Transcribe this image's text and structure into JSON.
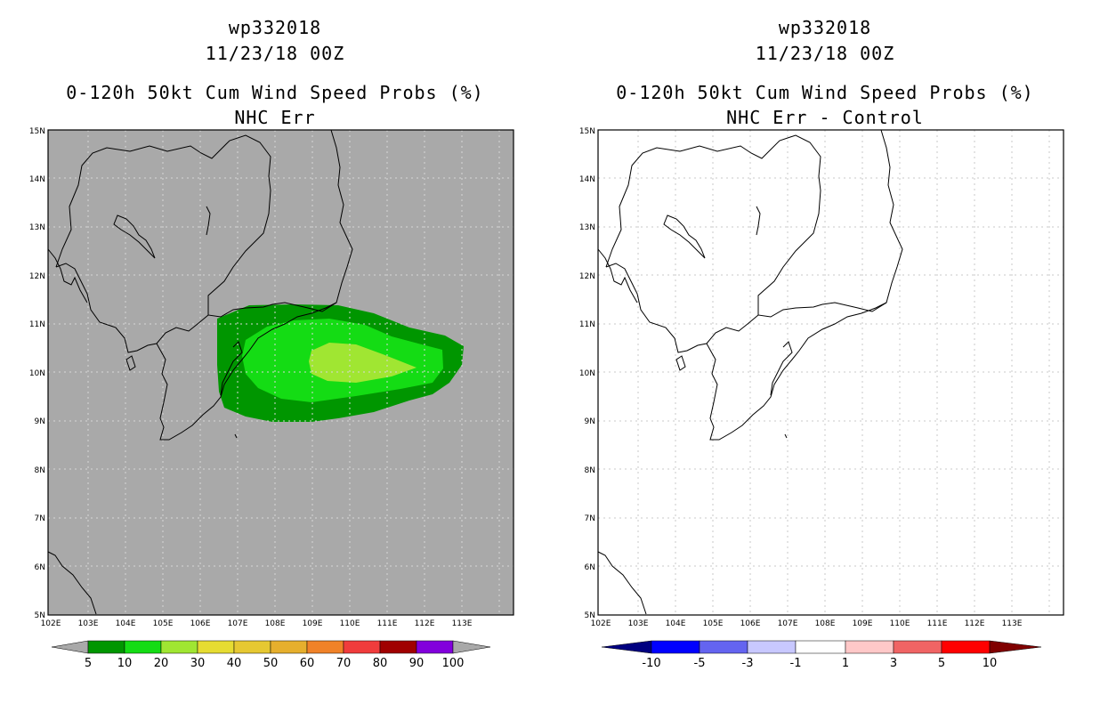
{
  "left_panel": {
    "storm_id": "wp332018",
    "datetime": "11/23/18 00Z",
    "title": "0-120h 50kt Cum Wind Speed Probs (%)",
    "subtitle": "NHC Err",
    "background_color": "#a9a9a9",
    "colorbar": {
      "colors": [
        "#009600",
        "#14dc14",
        "#a0e632",
        "#e6dc32",
        "#e6c832",
        "#e6af2d",
        "#f08228",
        "#f03c3c",
        "#a00000",
        "#8200dc"
      ],
      "labels": [
        "5",
        "10",
        "20",
        "30",
        "40",
        "50",
        "60",
        "70",
        "80",
        "90",
        "100"
      ]
    }
  },
  "right_panel": {
    "storm_id": "wp332018",
    "datetime": "11/23/18 00Z",
    "title": "0-120h 50kt Cum Wind Speed Probs (%)",
    "subtitle": "NHC Err - Control",
    "background_color": "#ffffff",
    "colorbar": {
      "colors": [
        "#0000ff",
        "#6464f0",
        "#c8c8ff",
        "#ffffff",
        "#ffc8c8",
        "#f06464",
        "#ff0000"
      ],
      "labels": [
        "-10",
        "-5",
        "-3",
        "-1",
        "1",
        "3",
        "5",
        "10"
      ]
    }
  },
  "map_axes": {
    "lon_labels": [
      "102E",
      "103E",
      "104E",
      "105E",
      "106E",
      "107E",
      "108E",
      "109E",
      "110E",
      "111E",
      "112E",
      "113E"
    ],
    "lat_labels": [
      "5N",
      "6N",
      "7N",
      "8N",
      "9N",
      "10N",
      "11N",
      "12N",
      "13N",
      "14N",
      "15N"
    ]
  },
  "probability_contours": [
    {
      "level": "5",
      "color": "#009600"
    },
    {
      "level": "10",
      "color": "#14dc14"
    },
    {
      "level": "20",
      "color": "#a0e632"
    }
  ]
}
